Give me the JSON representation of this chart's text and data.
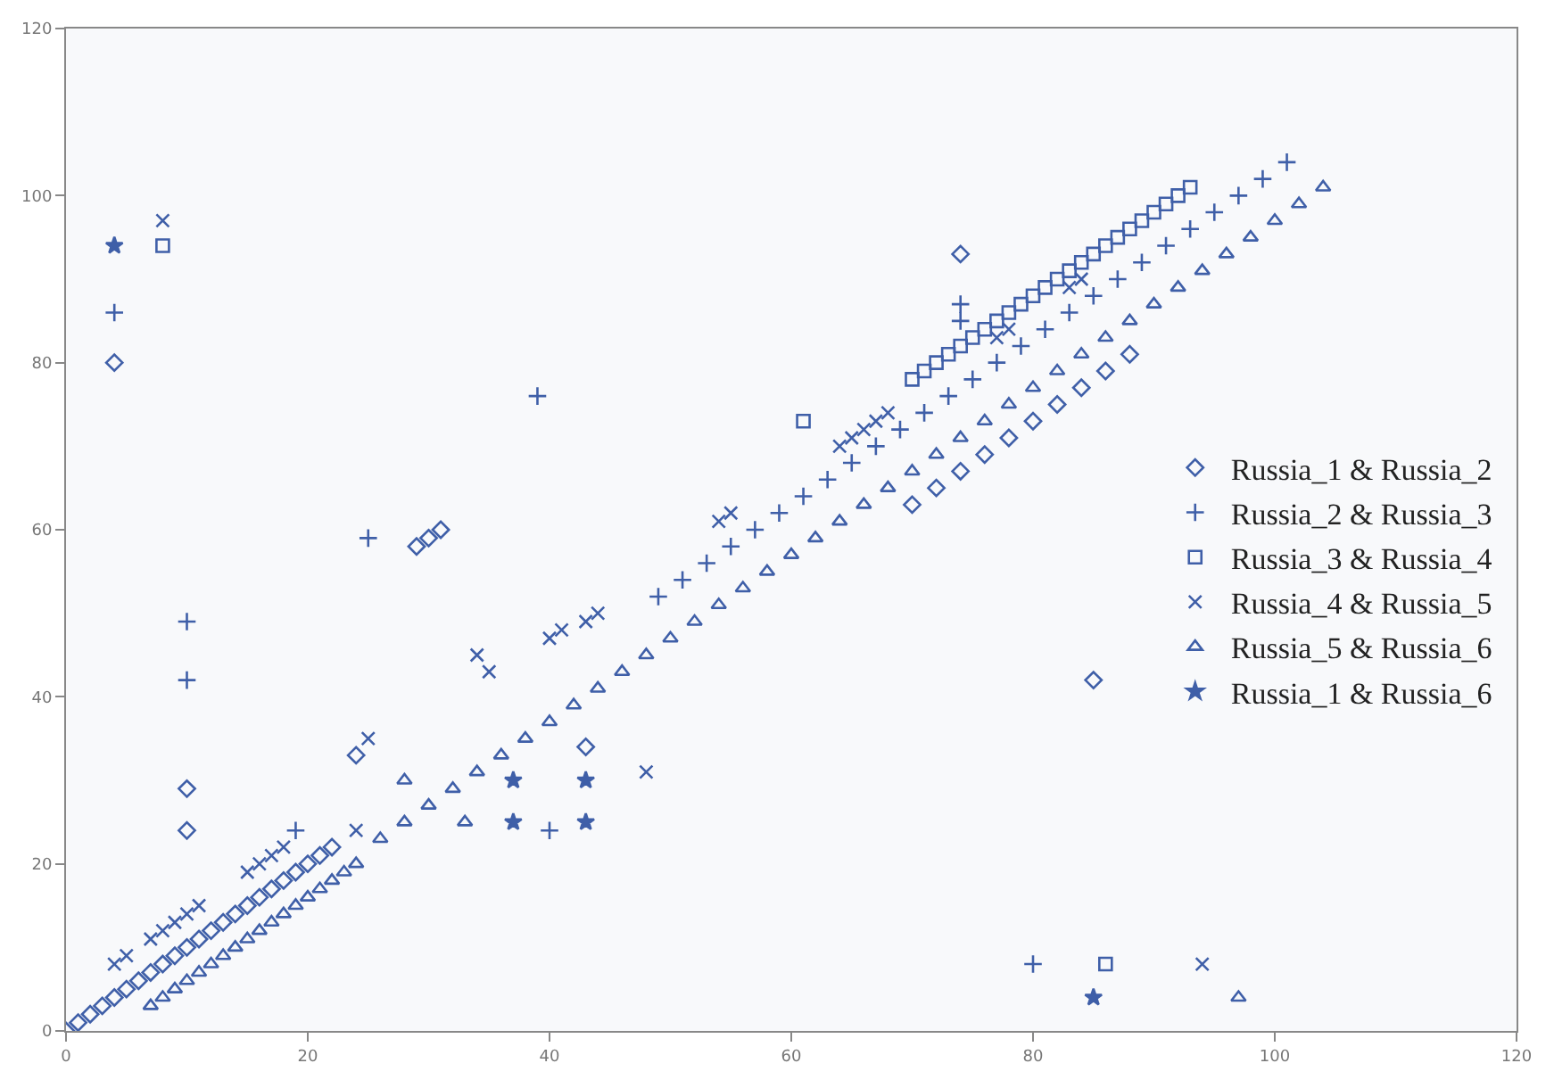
{
  "chart_data": {
    "type": "scatter",
    "xlim": [
      0,
      120
    ],
    "ylim": [
      0,
      120
    ],
    "xticks": [
      0,
      20,
      40,
      60,
      80,
      100,
      120
    ],
    "yticks": [
      0,
      20,
      40,
      60,
      80,
      100,
      120
    ],
    "grid": false,
    "legend": "right",
    "series": [
      {
        "name": "Russia_1 & Russia_2",
        "marker": "diamond",
        "color": "#3f5fa8",
        "x": [
          0,
          1,
          2,
          3,
          4,
          5,
          6,
          7,
          8,
          9,
          10,
          11,
          12,
          13,
          14,
          15,
          16,
          17,
          18,
          19,
          20,
          21,
          22,
          4,
          10,
          10,
          24,
          29,
          30,
          31,
          43,
          74,
          85,
          70,
          72,
          74,
          76,
          78,
          80,
          82,
          84,
          86,
          88
        ],
        "values": [
          0,
          1,
          2,
          3,
          4,
          5,
          6,
          7,
          8,
          9,
          10,
          11,
          12,
          13,
          14,
          15,
          16,
          17,
          18,
          19,
          20,
          21,
          22,
          80,
          29,
          24,
          33,
          58,
          59,
          60,
          34,
          93,
          42,
          63,
          65,
          67,
          69,
          71,
          73,
          75,
          77,
          79,
          81
        ]
      },
      {
        "name": "Russia_2 & Russia_3",
        "marker": "cross",
        "color": "#3f5fa8",
        "x": [
          4,
          10,
          10,
          25,
          39,
          74,
          74,
          80,
          19,
          40,
          49,
          51,
          53,
          55,
          57,
          59,
          61,
          63,
          65,
          67,
          69,
          71,
          73,
          75,
          77,
          79,
          81,
          83,
          85,
          87,
          89,
          91,
          93,
          95,
          97,
          99,
          101
        ],
        "values": [
          86,
          49,
          42,
          59,
          76,
          87,
          85,
          8,
          24,
          24,
          52,
          54,
          56,
          58,
          60,
          62,
          64,
          66,
          68,
          70,
          72,
          74,
          76,
          78,
          80,
          82,
          84,
          86,
          88,
          90,
          92,
          94,
          96,
          98,
          100,
          102,
          104
        ]
      },
      {
        "name": "Russia_3 & Russia_4",
        "marker": "square",
        "color": "#3f5fa8",
        "x": [
          8,
          61,
          86,
          70,
          71,
          72,
          73,
          74,
          75,
          76,
          77,
          78,
          79,
          80,
          81,
          82,
          83,
          84,
          85,
          86,
          87,
          88,
          89,
          90,
          91,
          92,
          93
        ],
        "values": [
          94,
          73,
          8,
          78,
          79,
          80,
          81,
          82,
          83,
          84,
          85,
          86,
          87,
          88,
          89,
          90,
          91,
          92,
          93,
          94,
          95,
          96,
          97,
          98,
          99,
          100,
          101
        ]
      },
      {
        "name": "Russia_4 & Russia_5",
        "marker": "x",
        "color": "#3f5fa8",
        "x": [
          8,
          25,
          34,
          35,
          40,
          41,
          43,
          44,
          48,
          94,
          54,
          55,
          4,
          5,
          7,
          8,
          9,
          10,
          11,
          15,
          16,
          17,
          18,
          24,
          64,
          65,
          66,
          67,
          68,
          77,
          78,
          83,
          84
        ],
        "values": [
          97,
          35,
          45,
          43,
          47,
          48,
          49,
          50,
          31,
          8,
          61,
          62,
          8,
          9,
          11,
          12,
          13,
          14,
          15,
          19,
          20,
          21,
          22,
          24,
          70,
          71,
          72,
          73,
          74,
          83,
          84,
          89,
          90
        ]
      },
      {
        "name": "Russia_5 & Russia_6",
        "marker": "triangle",
        "color": "#3f5fa8",
        "x": [
          28,
          33,
          97,
          7,
          8,
          9,
          10,
          11,
          12,
          13,
          14,
          15,
          16,
          17,
          18,
          19,
          20,
          21,
          22,
          23,
          24,
          26,
          28,
          30,
          32,
          34,
          36,
          38,
          40,
          42,
          44,
          46,
          48,
          50,
          52,
          54,
          56,
          58,
          60,
          62,
          64,
          66,
          68,
          70,
          72,
          74,
          76,
          78,
          80,
          82,
          84,
          86,
          88,
          90,
          92,
          94,
          96,
          98,
          100,
          102,
          104
        ],
        "values": [
          30,
          25,
          4,
          3,
          4,
          5,
          6,
          7,
          8,
          9,
          10,
          11,
          12,
          13,
          14,
          15,
          16,
          17,
          18,
          19,
          20,
          23,
          25,
          27,
          29,
          31,
          33,
          35,
          37,
          39,
          41,
          43,
          45,
          47,
          49,
          51,
          53,
          55,
          57,
          59,
          61,
          63,
          65,
          67,
          69,
          71,
          73,
          75,
          77,
          79,
          81,
          83,
          85,
          87,
          89,
          91,
          93,
          95,
          97,
          99,
          101
        ]
      },
      {
        "name": "Russia_1 & Russia_6",
        "marker": "star",
        "color": "#3f5fa8",
        "x": [
          4,
          37,
          37,
          43,
          43,
          85
        ],
        "values": [
          94,
          30,
          25,
          30,
          25,
          4
        ]
      }
    ]
  }
}
